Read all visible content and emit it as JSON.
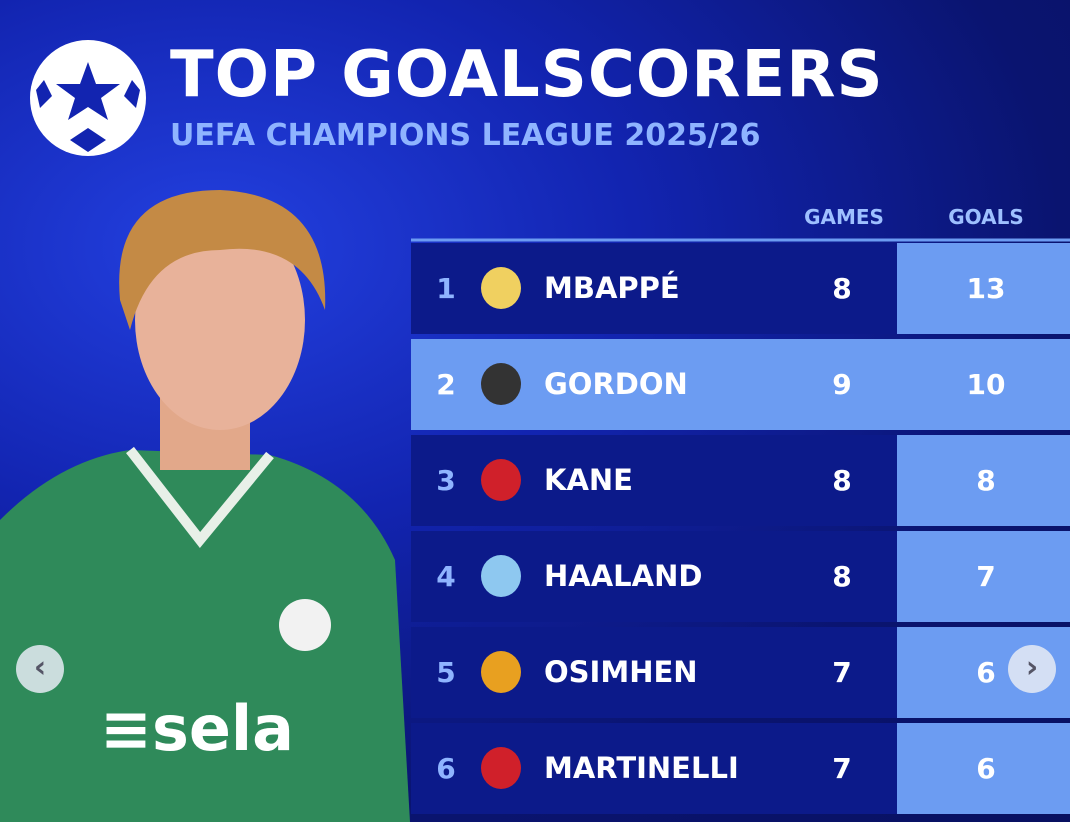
{
  "header": {
    "title": "TOP GOALSCORERS",
    "subtitle": "UEFA CHAMPIONS LEAGUE 2025/26"
  },
  "table": {
    "columns": [
      "GAMES",
      "GOALS"
    ],
    "rows": [
      {
        "rank": 1,
        "name": "MBAPPÉ",
        "games": 8,
        "goals": 13
      },
      {
        "rank": 2,
        "name": "GORDON",
        "games": 9,
        "goals": 10
      },
      {
        "rank": 3,
        "name": "KANE",
        "games": 8,
        "goals": 8
      },
      {
        "rank": 4,
        "name": "HAALAND",
        "games": 8,
        "goals": 7
      },
      {
        "rank": 5,
        "name": "OSIMHEN",
        "games": 7,
        "goals": 6
      },
      {
        "rank": 6,
        "name": "MARTINELLI",
        "games": 7,
        "goals": 6
      }
    ]
  }
}
